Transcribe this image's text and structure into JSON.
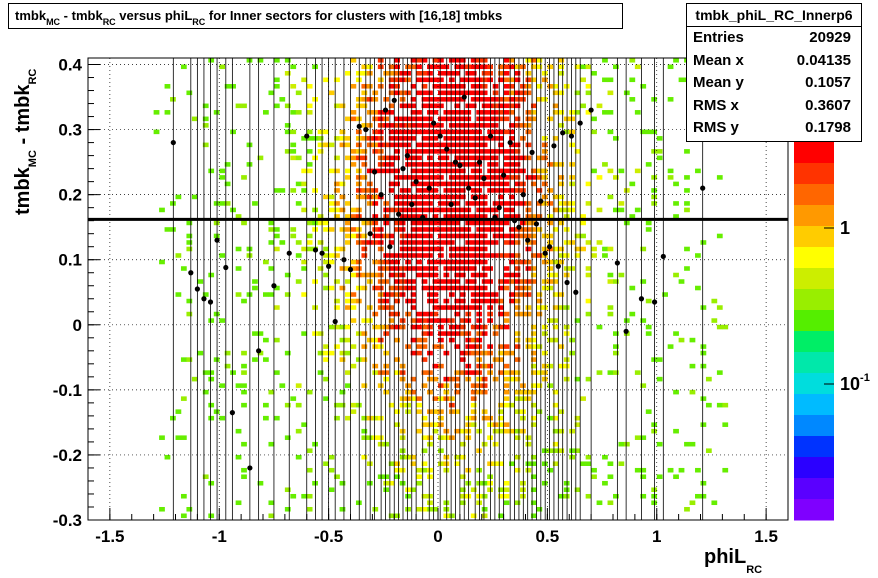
{
  "title": {
    "part1": "tmbk",
    "sub1": "MC",
    "part2": " - tmbk",
    "sub2": "RC",
    "part3": " versus phiL",
    "sub3": "RC",
    "part4": " for Inner sectors for clusters with [16,18] tmbks"
  },
  "stats": {
    "name": "tmbk_phiL_RC_Innerp6",
    "rows": [
      {
        "label": "Entries",
        "value": "20929"
      },
      {
        "label": "Mean x",
        "value": "0.04135"
      },
      {
        "label": "Mean y",
        "value": "0.1057"
      },
      {
        "label": "RMS x",
        "value": "0.3607"
      },
      {
        "label": "RMS y",
        "value": "0.1798"
      }
    ]
  },
  "xlabel": {
    "main": "phiL",
    "sub": "RC"
  },
  "ylabel": {
    "main1": "tmbk",
    "sub1": "MC",
    "main2": " - tmbk",
    "sub2": "RC"
  },
  "colors": {
    "scale": [
      "#7f00ff",
      "#5a00ff",
      "#2b00ff",
      "#0033ff",
      "#0088ff",
      "#00bbff",
      "#00dddd",
      "#00e8aa",
      "#00ee66",
      "#55ee00",
      "#99ee00",
      "#ccee00",
      "#ffff00",
      "#ffcc00",
      "#ff9900",
      "#ff6600",
      "#ff3300",
      "#ff0000"
    ],
    "profile": "#000000",
    "fit_line": "#000000"
  },
  "chart_data": {
    "type": "heatmap",
    "xlim": [
      -1.6,
      1.6
    ],
    "ylim": [
      -0.3,
      0.41
    ],
    "x_ticks": [
      "-1.5",
      "-1",
      "-0.5",
      "0",
      "0.5",
      "1",
      "1.5"
    ],
    "y_ticks": [
      "-0.3",
      "-0.2",
      "-0.1",
      "0",
      "0.1",
      "0.2",
      "0.3",
      "0.4"
    ],
    "z_scale": "log",
    "z_ticks": [
      "10^-1",
      "1"
    ],
    "z_tick_partial": "0",
    "grid": true,
    "fit_line_y": 0.162,
    "profile_points": [
      {
        "x": -1.21,
        "y": 0.28
      },
      {
        "x": -1.13,
        "y": 0.08
      },
      {
        "x": -1.1,
        "y": 0.055
      },
      {
        "x": -1.07,
        "y": 0.04
      },
      {
        "x": -1.04,
        "y": 0.035
      },
      {
        "x": -1.01,
        "y": 0.13
      },
      {
        "x": -0.97,
        "y": 0.088
      },
      {
        "x": -0.94,
        "y": -0.135
      },
      {
        "x": -0.86,
        "y": -0.22
      },
      {
        "x": -0.82,
        "y": -0.04
      },
      {
        "x": -0.75,
        "y": 0.06
      },
      {
        "x": -0.68,
        "y": 0.11
      },
      {
        "x": -0.6,
        "y": 0.29
      },
      {
        "x": -0.56,
        "y": 0.115
      },
      {
        "x": -0.53,
        "y": 0.11
      },
      {
        "x": -0.5,
        "y": 0.09
      },
      {
        "x": -0.47,
        "y": 0.005
      },
      {
        "x": -0.43,
        "y": 0.1
      },
      {
        "x": -0.4,
        "y": 0.085
      },
      {
        "x": -0.36,
        "y": 0.305
      },
      {
        "x": -0.33,
        "y": 0.3
      },
      {
        "x": -0.31,
        "y": 0.14
      },
      {
        "x": -0.29,
        "y": 0.235
      },
      {
        "x": -0.26,
        "y": 0.2
      },
      {
        "x": -0.24,
        "y": 0.33
      },
      {
        "x": -0.22,
        "y": 0.12
      },
      {
        "x": -0.2,
        "y": 0.345
      },
      {
        "x": -0.18,
        "y": 0.17
      },
      {
        "x": -0.16,
        "y": 0.24
      },
      {
        "x": -0.14,
        "y": 0.26
      },
      {
        "x": -0.12,
        "y": 0.185
      },
      {
        "x": -0.1,
        "y": 0.22
      },
      {
        "x": -0.07,
        "y": 0.165
      },
      {
        "x": -0.04,
        "y": 0.21
      },
      {
        "x": -0.02,
        "y": 0.31
      },
      {
        "x": 0.01,
        "y": 0.29
      },
      {
        "x": 0.04,
        "y": 0.27
      },
      {
        "x": 0.06,
        "y": 0.185
      },
      {
        "x": 0.08,
        "y": 0.25
      },
      {
        "x": 0.1,
        "y": 0.245
      },
      {
        "x": 0.12,
        "y": 0.35
      },
      {
        "x": 0.14,
        "y": 0.21
      },
      {
        "x": 0.17,
        "y": 0.195
      },
      {
        "x": 0.19,
        "y": 0.25
      },
      {
        "x": 0.21,
        "y": 0.225
      },
      {
        "x": 0.24,
        "y": 0.29
      },
      {
        "x": 0.26,
        "y": 0.165
      },
      {
        "x": 0.28,
        "y": 0.18
      },
      {
        "x": 0.3,
        "y": 0.23
      },
      {
        "x": 0.33,
        "y": 0.28
      },
      {
        "x": 0.35,
        "y": 0.16
      },
      {
        "x": 0.37,
        "y": 0.15
      },
      {
        "x": 0.39,
        "y": 0.2
      },
      {
        "x": 0.41,
        "y": 0.13
      },
      {
        "x": 0.43,
        "y": 0.265
      },
      {
        "x": 0.45,
        "y": 0.155
      },
      {
        "x": 0.47,
        "y": 0.19
      },
      {
        "x": 0.49,
        "y": 0.11
      },
      {
        "x": 0.51,
        "y": 0.12
      },
      {
        "x": 0.53,
        "y": 0.275
      },
      {
        "x": 0.55,
        "y": 0.09
      },
      {
        "x": 0.57,
        "y": 0.295
      },
      {
        "x": 0.59,
        "y": 0.065
      },
      {
        "x": 0.61,
        "y": 0.29
      },
      {
        "x": 0.63,
        "y": 0.05
      },
      {
        "x": 0.65,
        "y": 0.31
      },
      {
        "x": 0.7,
        "y": 0.33
      },
      {
        "x": 0.82,
        "y": 0.095
      },
      {
        "x": 0.86,
        "y": -0.01
      },
      {
        "x": 0.93,
        "y": 0.04
      },
      {
        "x": 0.99,
        "y": 0.035
      },
      {
        "x": 1.03,
        "y": 0.105
      },
      {
        "x": 1.21,
        "y": 0.21
      }
    ]
  }
}
